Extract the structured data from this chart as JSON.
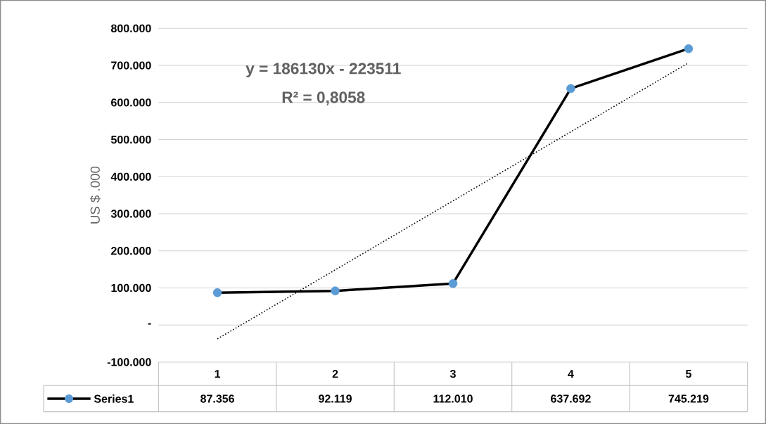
{
  "chart_data": {
    "type": "line",
    "ylabel": "US $ .000",
    "categories": [
      "1",
      "2",
      "3",
      "4",
      "5"
    ],
    "series": [
      {
        "name": "Series1",
        "color": "#000000",
        "colors": [
          "#5b9bd5",
          "#5b9bd5",
          "#5b9bd5",
          "#5b9bd5",
          "#5b9bd5"
        ],
        "marker": "circle",
        "line_style": "solid",
        "values": [
          87356,
          92119,
          112010,
          637692,
          745219
        ],
        "value_labels": [
          "87.356",
          "92.119",
          "112.010",
          "637.692",
          "745.219"
        ]
      },
      {
        "type": "line",
        "color": "#000000",
        "marker": "none",
        "line_style": "dotted",
        "values": [
          -37381,
          148749,
          334879,
          521009,
          707139
        ]
      }
    ],
    "annotations": [
      "y = 186130x - 223511",
      "R² = 0,8058"
    ],
    "ylim": [
      -100000,
      800000
    ],
    "yticks": [
      {
        "value": -100000,
        "label": "-100.000"
      },
      {
        "value": 0,
        "label": "-"
      },
      {
        "value": 100000,
        "label": "100.000"
      },
      {
        "value": 200000,
        "label": "200.000"
      },
      {
        "value": 300000,
        "label": "300.000"
      },
      {
        "value": 400000,
        "label": "400.000"
      },
      {
        "value": 500000,
        "label": "500.000"
      },
      {
        "value": 600000,
        "label": "600.000"
      },
      {
        "value": 700000,
        "label": "700.000"
      },
      {
        "value": 800000,
        "label": "800.000"
      }
    ],
    "grid": "y",
    "legend": "bottom"
  }
}
